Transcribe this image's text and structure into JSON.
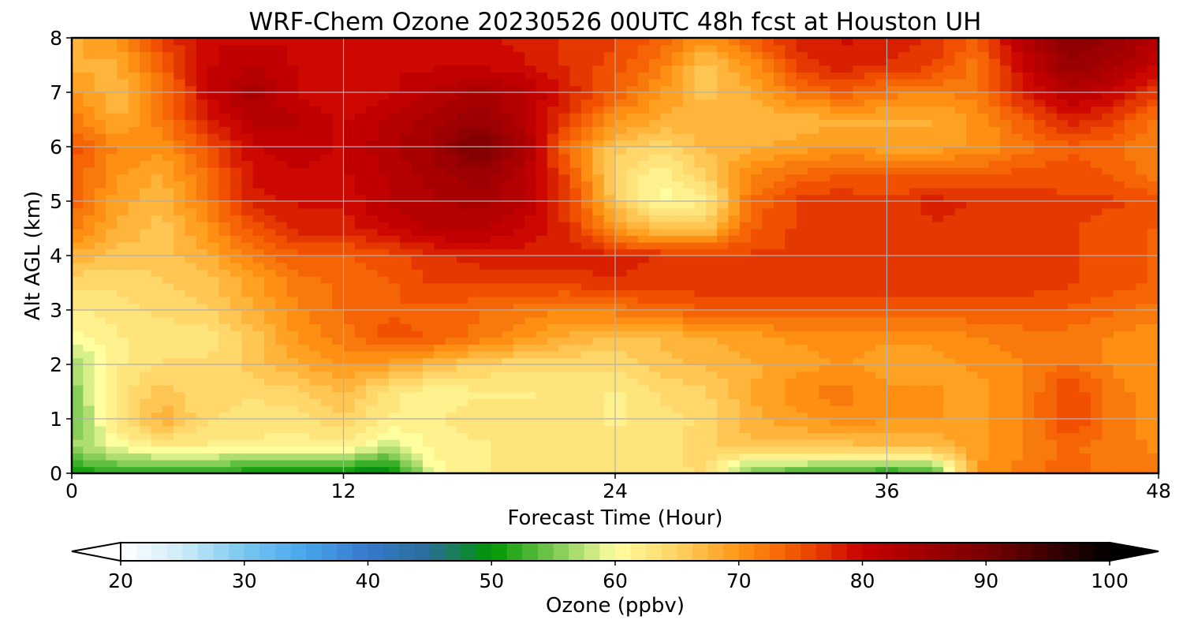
{
  "chart_data": {
    "type": "heatmap",
    "title": "WRF-Chem Ozone  20230526 00UTC 48h fcst at Houston UH",
    "xlabel": "Forecast Time (Hour)",
    "ylabel": "Alt AGL (km)",
    "xlim": [
      0,
      48
    ],
    "ylim": [
      0,
      8
    ],
    "xticks": [
      0,
      12,
      24,
      36,
      48
    ],
    "yticks": [
      0,
      1,
      2,
      3,
      4,
      5,
      6,
      7,
      8
    ],
    "grid": true,
    "x": [
      0,
      2,
      4,
      6,
      8,
      10,
      12,
      14,
      16,
      18,
      20,
      22,
      24,
      26,
      28,
      30,
      32,
      34,
      36,
      38,
      40,
      42,
      44,
      46,
      48
    ],
    "y": [
      0,
      0.5,
      1,
      1.5,
      2,
      2.5,
      3,
      3.5,
      4,
      4.5,
      5,
      5.5,
      6,
      6.5,
      7,
      7.5,
      8
    ],
    "z": [
      [
        50,
        52,
        51,
        51,
        50,
        50,
        49,
        48,
        60,
        62,
        63,
        63,
        63,
        63,
        64,
        54,
        53,
        52,
        51,
        52,
        70,
        72,
        74,
        72,
        72
      ],
      [
        56,
        60,
        62,
        62,
        62,
        61,
        62,
        58,
        61,
        62,
        63,
        63,
        63,
        63,
        65,
        66,
        66,
        66,
        67,
        67,
        69,
        71,
        73,
        72,
        71
      ],
      [
        54,
        63,
        68,
        64,
        63,
        63,
        65,
        62,
        62,
        63,
        63,
        63,
        62,
        63,
        64,
        68,
        69,
        71,
        70,
        70,
        69,
        71,
        76,
        72,
        70
      ],
      [
        55,
        63,
        66,
        64,
        64,
        65,
        67,
        63,
        61,
        62,
        62,
        63,
        62,
        64,
        65,
        68,
        71,
        72,
        70,
        70,
        69,
        71,
        76,
        72,
        70
      ],
      [
        56,
        62,
        64,
        64,
        66,
        68,
        70,
        69,
        67,
        65,
        64,
        64,
        64,
        66,
        67,
        68,
        69,
        70,
        69,
        69,
        70,
        71,
        73,
        71,
        70
      ],
      [
        60,
        62,
        63,
        63,
        66,
        70,
        72,
        75,
        74,
        72,
        70,
        68,
        66,
        67,
        68,
        69,
        70,
        70,
        70,
        70,
        71,
        72,
        72,
        71,
        70
      ],
      [
        62,
        63,
        64,
        65,
        68,
        71,
        73,
        74,
        74,
        73,
        72,
        71,
        72,
        73,
        74,
        74,
        74,
        74,
        74,
        74,
        74,
        74,
        74,
        73,
        72
      ],
      [
        64,
        64,
        65,
        66,
        69,
        72,
        73,
        74,
        76,
        76,
        76,
        76,
        77,
        77,
        77,
        77,
        77,
        77,
        77,
        77,
        77,
        77,
        76,
        75,
        74
      ],
      [
        68,
        66,
        66,
        68,
        72,
        74,
        74,
        75,
        77,
        78,
        78,
        79,
        78,
        77,
        77,
        76,
        76,
        77,
        77,
        77,
        77,
        77,
        76,
        75,
        74
      ],
      [
        72,
        68,
        66,
        70,
        75,
        78,
        78,
        80,
        82,
        82,
        80,
        77,
        70,
        66,
        66,
        74,
        76,
        77,
        76,
        77,
        77,
        77,
        76,
        75,
        74
      ],
      [
        74,
        69,
        67,
        72,
        78,
        79,
        79,
        82,
        83,
        84,
        82,
        76,
        66,
        60,
        62,
        73,
        76,
        77,
        76,
        78,
        77,
        77,
        76,
        76,
        75
      ],
      [
        74,
        70,
        68,
        73,
        79,
        80,
        80,
        82,
        84,
        86,
        82,
        75,
        64,
        61,
        65,
        71,
        73,
        74,
        74,
        74,
        74,
        75,
        75,
        74,
        72
      ],
      [
        75,
        71,
        70,
        75,
        80,
        81,
        80,
        83,
        85,
        90,
        84,
        72,
        66,
        64,
        67,
        68,
        69,
        70,
        69,
        69,
        70,
        72,
        74,
        73,
        71
      ],
      [
        72,
        68,
        72,
        78,
        82,
        82,
        80,
        82,
        84,
        86,
        82,
        76,
        70,
        68,
        68,
        67,
        67,
        68,
        68,
        68,
        70,
        74,
        78,
        76,
        72
      ],
      [
        70,
        67,
        72,
        80,
        84,
        80,
        79,
        80,
        82,
        84,
        82,
        78,
        74,
        70,
        66,
        68,
        72,
        74,
        72,
        71,
        72,
        78,
        82,
        80,
        76
      ],
      [
        68,
        68,
        74,
        80,
        82,
        80,
        79,
        80,
        80,
        80,
        79,
        77,
        75,
        72,
        66,
        70,
        76,
        78,
        77,
        76,
        72,
        80,
        86,
        84,
        80
      ],
      [
        68,
        70,
        76,
        80,
        80,
        80,
        80,
        80,
        80,
        79,
        78,
        77,
        76,
        74,
        70,
        74,
        78,
        79,
        78,
        77,
        74,
        82,
        88,
        86,
        82
      ]
    ],
    "colorbar": {
      "label": "Ozone  (ppbv)",
      "min": 20,
      "max": 100,
      "ticks": [
        20,
        30,
        40,
        50,
        60,
        70,
        80,
        90,
        100
      ],
      "extend": "both"
    }
  }
}
